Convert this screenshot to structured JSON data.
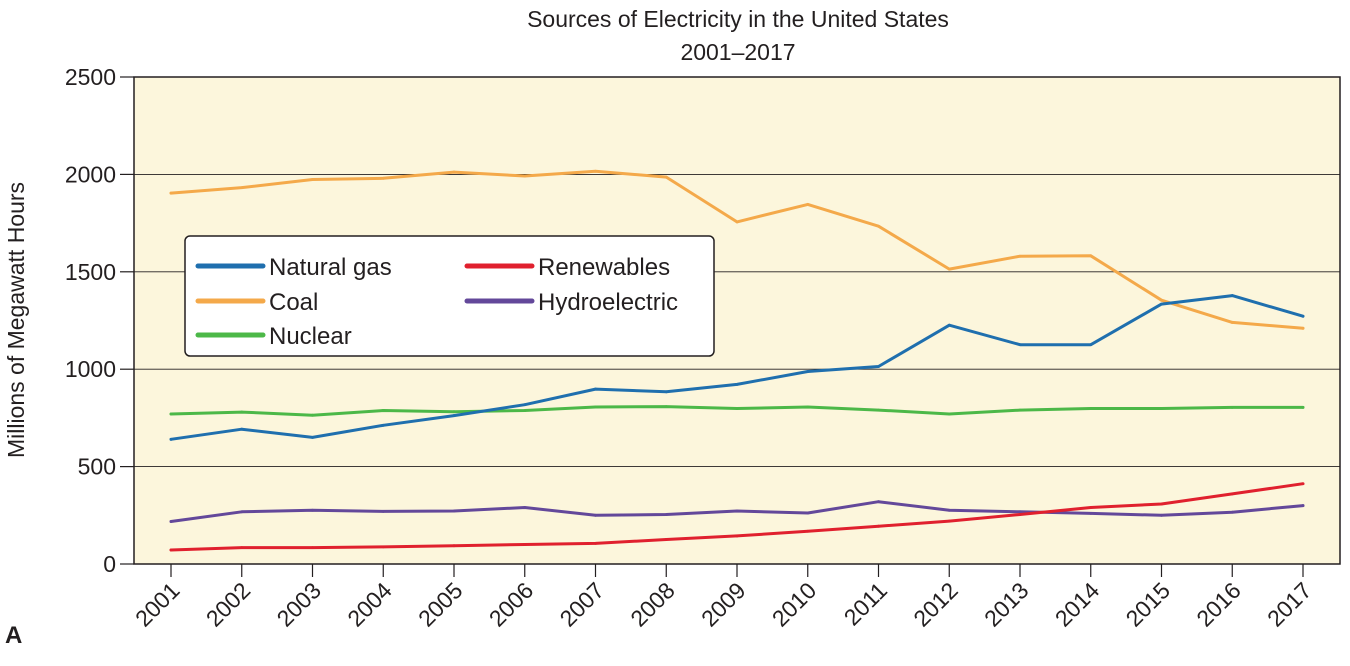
{
  "chart_data": {
    "type": "line",
    "title": "Sources of Electricity in the United States",
    "subtitle": "2001–2017",
    "ylabel": "Millions of Megawatt Hours",
    "xlabel": "",
    "panel_label": "A",
    "ylim": [
      0,
      2500
    ],
    "yticks": [
      "0",
      "500",
      "1000",
      "1500",
      "2000",
      "2500"
    ],
    "grid": true,
    "legend_placement": "center-left",
    "background": "#fcf6dc",
    "x": [
      "2001",
      "2002",
      "2003",
      "2004",
      "2005",
      "2006",
      "2007",
      "2008",
      "2009",
      "2010",
      "2011",
      "2012",
      "2013",
      "2014",
      "2015",
      "2016",
      "2017"
    ],
    "series": [
      {
        "name": "Natural gas",
        "color": "#1f6fae",
        "values": [
          640,
          692,
          650,
          712,
          762,
          818,
          898,
          884,
          922,
          988,
          1014,
          1226,
          1126,
          1126,
          1334,
          1378,
          1272
        ]
      },
      {
        "name": "Coal",
        "color": "#f4a94a",
        "values": [
          1904,
          1932,
          1974,
          1980,
          2012,
          1992,
          2016,
          1986,
          1756,
          1846,
          1734,
          1514,
          1580,
          1582,
          1354,
          1240,
          1210
        ]
      },
      {
        "name": "Nuclear",
        "color": "#4cb848",
        "values": [
          770,
          780,
          764,
          788,
          782,
          788,
          806,
          808,
          798,
          806,
          790,
          770,
          790,
          798,
          798,
          804,
          804
        ]
      },
      {
        "name": "Renewables",
        "color": "#e0202e",
        "values": [
          72,
          84,
          84,
          88,
          94,
          100,
          106,
          126,
          144,
          168,
          194,
          220,
          254,
          290,
          308,
          360,
          412
        ]
      },
      {
        "name": "Hydroelectric",
        "color": "#63489a",
        "values": [
          218,
          268,
          276,
          270,
          272,
          290,
          250,
          254,
          272,
          262,
          320,
          276,
          268,
          260,
          250,
          266,
          300
        ]
      }
    ]
  }
}
